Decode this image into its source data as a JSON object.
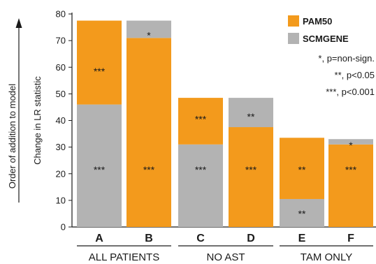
{
  "chart_data": {
    "type": "bar",
    "stacked": true,
    "categories": [
      "A",
      "B",
      "C",
      "D",
      "E",
      "F"
    ],
    "groups": [
      {
        "label": "ALL PATIENTS",
        "categories": [
          "A",
          "B"
        ]
      },
      {
        "label": "NO AST",
        "categories": [
          "C",
          "D"
        ]
      },
      {
        "label": "TAM ONLY",
        "categories": [
          "E",
          "F"
        ]
      }
    ],
    "series": [
      {
        "name": "PAM50",
        "color": "#f39a1c"
      },
      {
        "name": "SCMGENE",
        "color": "#b3b3b3"
      }
    ],
    "stacks": [
      {
        "category": "A",
        "segments": [
          {
            "series": "SCMGENE",
            "value": 46,
            "sig": "***"
          },
          {
            "series": "PAM50",
            "value": 31.5,
            "sig": "***"
          }
        ]
      },
      {
        "category": "B",
        "segments": [
          {
            "series": "PAM50",
            "value": 71,
            "sig": "***"
          },
          {
            "series": "SCMGENE",
            "value": 6.5,
            "sig": "*"
          }
        ]
      },
      {
        "category": "C",
        "segments": [
          {
            "series": "SCMGENE",
            "value": 31,
            "sig": "***"
          },
          {
            "series": "PAM50",
            "value": 17.5,
            "sig": "***"
          }
        ]
      },
      {
        "category": "D",
        "segments": [
          {
            "series": "PAM50",
            "value": 37.5,
            "sig": "***"
          },
          {
            "series": "SCMGENE",
            "value": 11,
            "sig": "**"
          }
        ]
      },
      {
        "category": "E",
        "segments": [
          {
            "series": "SCMGENE",
            "value": 10.5,
            "sig": "**"
          },
          {
            "series": "PAM50",
            "value": 23,
            "sig": "**"
          }
        ]
      },
      {
        "category": "F",
        "segments": [
          {
            "series": "PAM50",
            "value": 31,
            "sig": "***"
          },
          {
            "series": "SCMGENE",
            "value": 2,
            "sig": "*"
          }
        ]
      }
    ],
    "ylabel": "Change in LR statistic",
    "ylabel_outer": "Order of addition to model",
    "ylim": [
      0,
      80
    ],
    "yticks": [
      0,
      10,
      20,
      30,
      40,
      50,
      60,
      70,
      80
    ],
    "grid": false,
    "legend_position": "top-right",
    "notes": [
      "*, p=non-sign.",
      "**, p<0.05",
      "***, p<0.001"
    ]
  }
}
